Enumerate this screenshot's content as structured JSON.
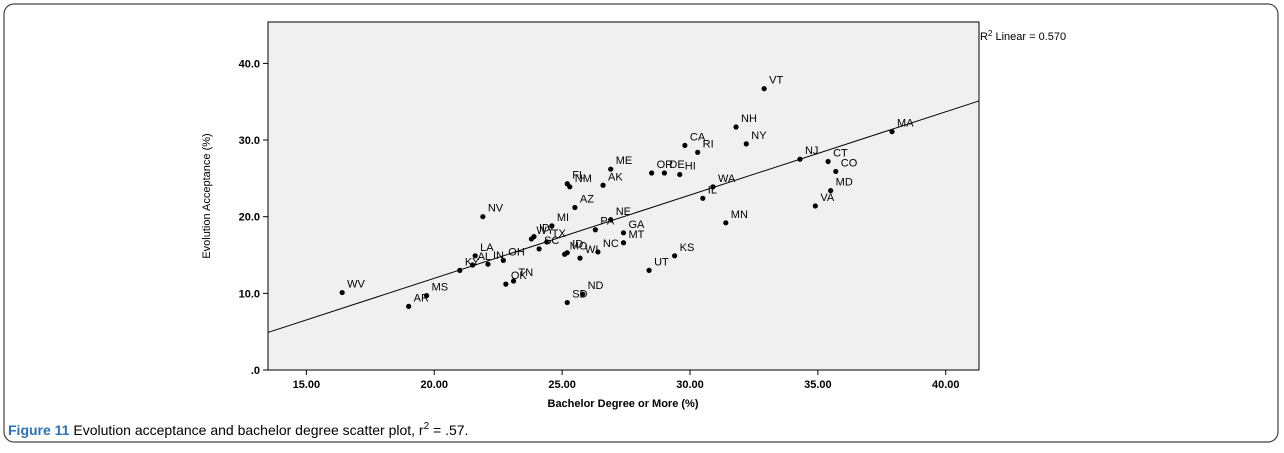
{
  "chart_data": {
    "type": "scatter",
    "xlabel": "Bachelor Degree or More (%)",
    "ylabel": "Evolution Acceptance (%)",
    "r2_label": {
      "base": "R",
      "sup": "2",
      "rest": " Linear = 0.570"
    },
    "caption": {
      "label": "Figure 11",
      "text": " Evolution acceptance and bachelor degree scatter plot, r",
      "sup": "2",
      "end": " = .57."
    },
    "xlim": [
      13.5,
      41.3
    ],
    "ylim": [
      0,
      45.4
    ],
    "xticks": [
      {
        "value": 15,
        "label": "15.00"
      },
      {
        "value": 20,
        "label": "20.00"
      },
      {
        "value": 25,
        "label": "25.00"
      },
      {
        "value": 30,
        "label": "30.00"
      },
      {
        "value": 35,
        "label": "35.00"
      },
      {
        "value": 40,
        "label": "40.00"
      }
    ],
    "yticks": [
      {
        "value": 0,
        "label": ".0"
      },
      {
        "value": 10,
        "label": "10.0"
      },
      {
        "value": 20,
        "label": "20.0"
      },
      {
        "value": 30,
        "label": "30.0"
      },
      {
        "value": 40,
        "label": "40.0"
      }
    ],
    "color": "#000000",
    "labels": [
      "WV",
      "AR",
      "MS",
      "KY",
      "AL",
      "LA",
      "IN",
      "OH",
      "OK",
      "TN",
      "NV",
      "WY",
      "ID",
      "MI",
      "SC",
      "TX",
      "ID",
      "MO",
      "WI",
      "NC",
      "MT",
      "GA",
      "PA",
      "NE",
      "KS",
      "UT",
      "ND",
      "SD",
      "AZ",
      "FL",
      "NM",
      "AK",
      "ME",
      "OR",
      "DE",
      "HI",
      "CA",
      "RI",
      "NH",
      "NY",
      "VT",
      "WA",
      "IL",
      "MN",
      "VA",
      "NJ",
      "CT",
      "CO",
      "MD",
      "MA"
    ],
    "x": [
      16.4,
      19.0,
      19.7,
      21.0,
      21.5,
      21.6,
      22.1,
      22.7,
      22.8,
      23.1,
      21.9,
      23.8,
      23.9,
      24.6,
      24.1,
      24.4,
      25.2,
      25.1,
      25.7,
      26.4,
      27.4,
      27.4,
      26.3,
      26.9,
      29.4,
      28.4,
      25.8,
      25.2,
      25.5,
      25.2,
      25.3,
      26.6,
      26.9,
      28.5,
      29.0,
      29.6,
      29.8,
      30.3,
      31.8,
      32.2,
      32.9,
      30.9,
      30.5,
      31.4,
      34.9,
      34.3,
      35.4,
      35.7,
      35.5,
      37.9
    ],
    "y": [
      10.1,
      8.3,
      9.7,
      13.0,
      13.7,
      14.9,
      13.8,
      14.3,
      11.2,
      11.6,
      20.0,
      17.1,
      17.4,
      18.8,
      15.8,
      16.7,
      15.3,
      15.1,
      14.6,
      15.4,
      16.6,
      17.9,
      18.3,
      19.6,
      14.9,
      13.0,
      9.9,
      8.8,
      21.2,
      24.3,
      23.9,
      24.1,
      26.2,
      25.7,
      25.7,
      25.5,
      29.3,
      28.4,
      31.7,
      29.5,
      36.7,
      23.9,
      22.4,
      19.2,
      21.4,
      27.5,
      27.2,
      25.9,
      23.4,
      31.1
    ],
    "trendline": {
      "x": [
        13.5,
        41.3
      ],
      "y": [
        4.9,
        35.1
      ]
    }
  }
}
